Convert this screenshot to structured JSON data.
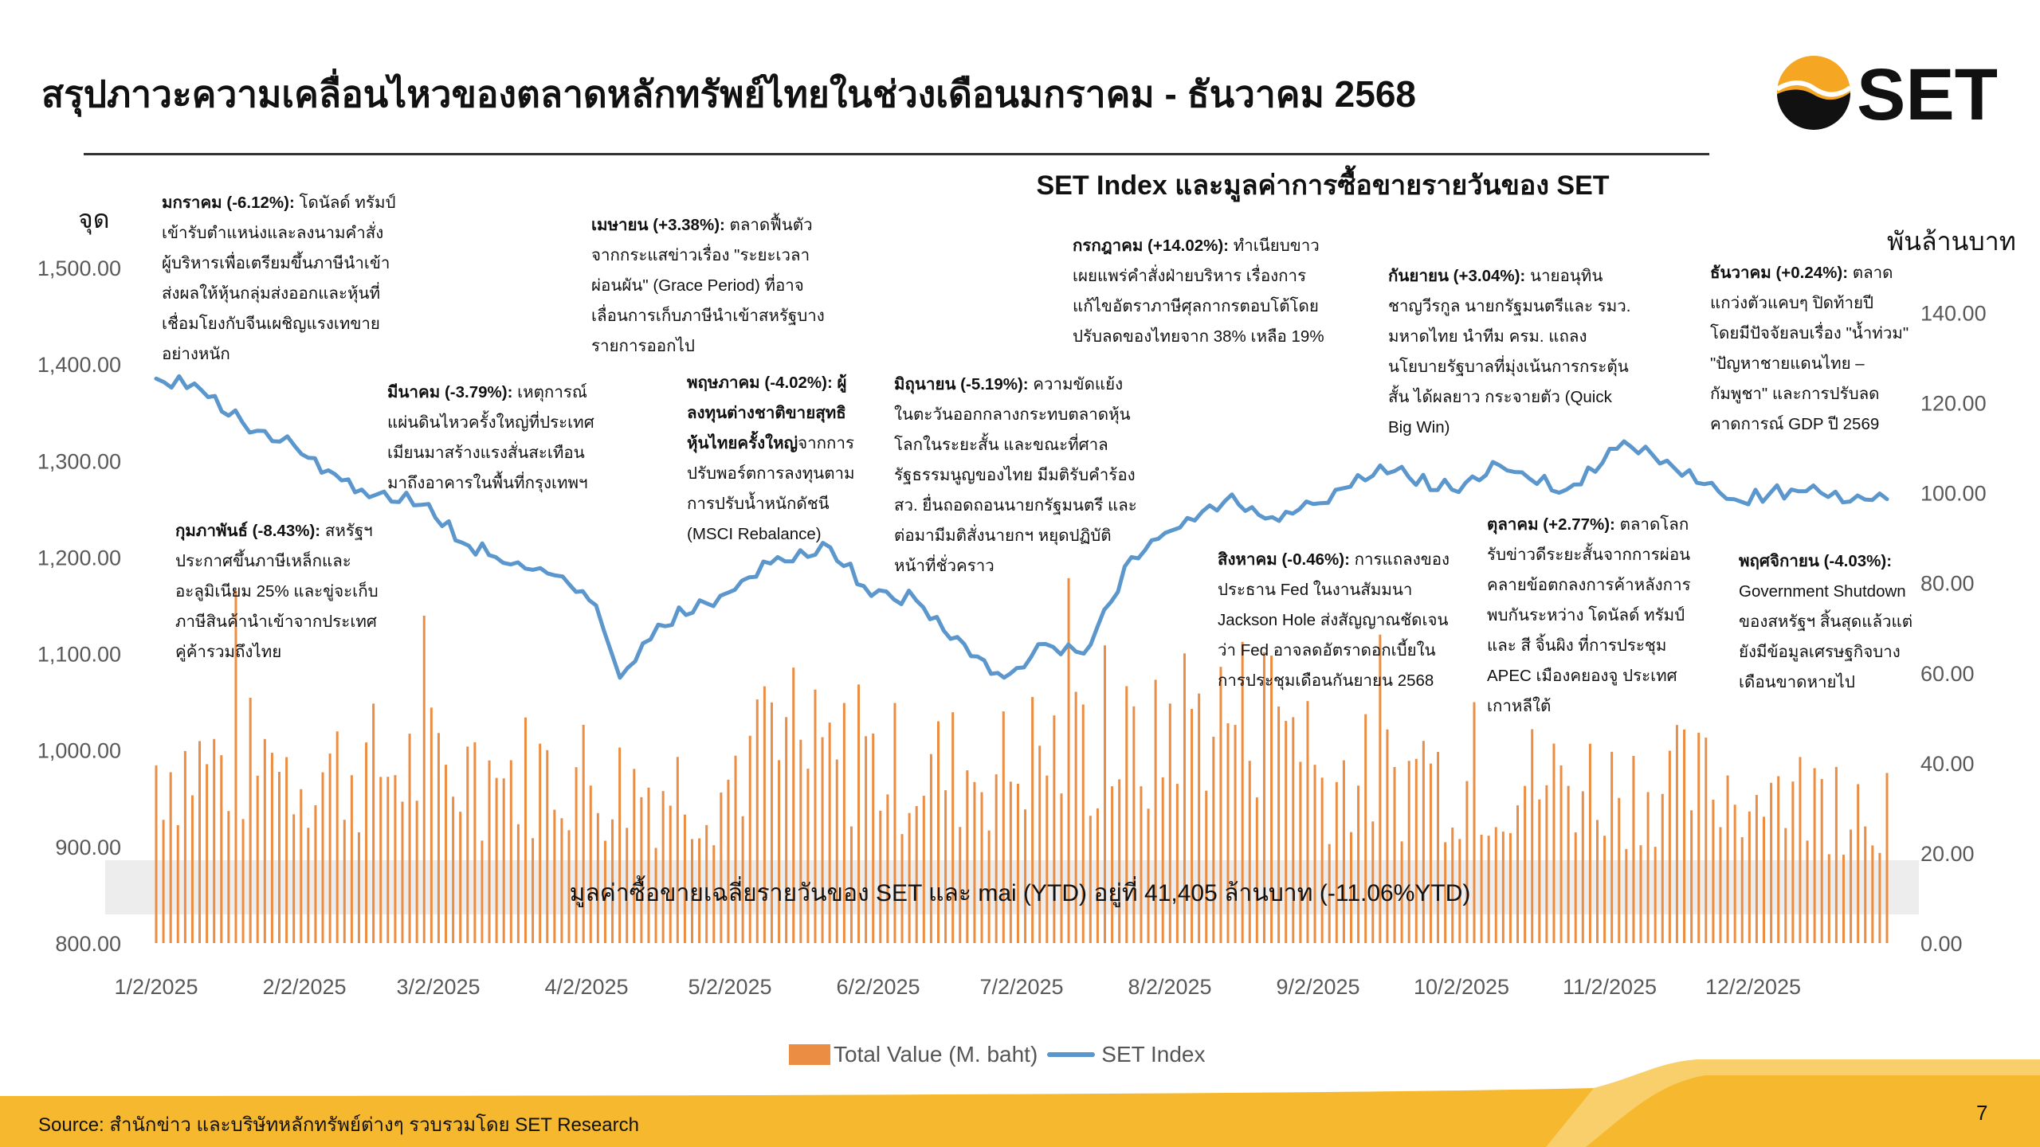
{
  "page": {
    "title": "สรุปภาวะความเคลื่อนไหวของตลาดหลักทรัพย์ไทยในช่วงเดือนมกราคม - ธันวาคม 2568",
    "logo_text": "SET",
    "source": "Source: สำนักข่าว และบริษัทหลักทรัพย์ต่างๆ รวบรวมโดย SET Research",
    "page_number": "7",
    "colors": {
      "bar": "#EB8E44",
      "line": "#5B97CC",
      "accent": "#F5B82E",
      "accent_light": "#F8CF6A",
      "banner": "#EDEDED",
      "logo_dark": "#111111"
    }
  },
  "chart_data": {
    "type": "bar+line",
    "title": "SET Index และมูลค่าการซื้อขายรายวันของ SET",
    "ylabel_left": "จุด",
    "ylabel_right": "พันล้านบาท",
    "ylim_left": [
      800,
      1500
    ],
    "ylim_right": [
      0,
      150
    ],
    "yticks_left": [
      "800.00",
      "900.00",
      "1,000.00",
      "1,100.00",
      "1,200.00",
      "1,300.00",
      "1,400.00",
      "1,500.00"
    ],
    "yticks_right": [
      "0.00",
      "20.00",
      "40.00",
      "60.00",
      "80.00",
      "100.00",
      "120.00",
      "140.00"
    ],
    "x_tick_labels": [
      "1/2/2025",
      "2/2/2025",
      "3/2/2025",
      "4/2/2025",
      "5/2/2025",
      "6/2/2025",
      "7/2/2025",
      "8/2/2025",
      "9/2/2025",
      "10/2/2025",
      "11/2/2025",
      "12/2/2025"
    ],
    "legend": {
      "bar": "Total Value (M. baht)",
      "line": "SET Index"
    },
    "banner": "มูลค่าซื้อขายเฉลี่ยรายวันของ SET และ mai (YTD) อยู่ที่ 41,405 ล้านบาท (-11.06%YTD)",
    "series_index_monthly_anchors": [
      {
        "date": "2025-01-02",
        "value": 1385
      },
      {
        "date": "2025-01-10",
        "value": 1380
      },
      {
        "date": "2025-01-20",
        "value": 1340
      },
      {
        "date": "2025-01-31",
        "value": 1315
      },
      {
        "date": "2025-02-07",
        "value": 1290
      },
      {
        "date": "2025-02-14",
        "value": 1270
      },
      {
        "date": "2025-02-28",
        "value": 1255
      },
      {
        "date": "2025-03-07",
        "value": 1215
      },
      {
        "date": "2025-03-14",
        "value": 1200
      },
      {
        "date": "2025-03-28",
        "value": 1180
      },
      {
        "date": "2025-04-04",
        "value": 1150
      },
      {
        "date": "2025-04-09",
        "value": 1075
      },
      {
        "date": "2025-04-17",
        "value": 1130
      },
      {
        "date": "2025-04-30",
        "value": 1160
      },
      {
        "date": "2025-05-12",
        "value": 1200
      },
      {
        "date": "2025-05-23",
        "value": 1210
      },
      {
        "date": "2025-05-30",
        "value": 1170
      },
      {
        "date": "2025-06-10",
        "value": 1155
      },
      {
        "date": "2025-06-20",
        "value": 1110
      },
      {
        "date": "2025-06-27",
        "value": 1080
      },
      {
        "date": "2025-07-01",
        "value": 1085
      },
      {
        "date": "2025-07-07",
        "value": 1110
      },
      {
        "date": "2025-07-15",
        "value": 1100
      },
      {
        "date": "2025-07-25",
        "value": 1200
      },
      {
        "date": "2025-08-01",
        "value": 1225
      },
      {
        "date": "2025-08-15",
        "value": 1265
      },
      {
        "date": "2025-08-22",
        "value": 1240
      },
      {
        "date": "2025-09-01",
        "value": 1255
      },
      {
        "date": "2025-09-15",
        "value": 1295
      },
      {
        "date": "2025-09-30",
        "value": 1270
      },
      {
        "date": "2025-10-10",
        "value": 1295
      },
      {
        "date": "2025-10-24",
        "value": 1270
      },
      {
        "date": "2025-11-05",
        "value": 1320
      },
      {
        "date": "2025-11-14",
        "value": 1300
      },
      {
        "date": "2025-11-28",
        "value": 1260
      },
      {
        "date": "2025-12-10",
        "value": 1270
      },
      {
        "date": "2025-12-30",
        "value": 1260
      }
    ],
    "total_value_bn_baht_monthly_avg": [
      {
        "month": "Jan",
        "value": 43
      },
      {
        "month": "Feb",
        "value": 42
      },
      {
        "month": "Mar",
        "value": 41
      },
      {
        "month": "Apr",
        "value": 38
      },
      {
        "month": "May",
        "value": 44
      },
      {
        "month": "Jun",
        "value": 42
      },
      {
        "month": "Jul",
        "value": 46
      },
      {
        "month": "Aug",
        "value": 55
      },
      {
        "month": "Sep",
        "value": 40
      },
      {
        "month": "Oct",
        "value": 39
      },
      {
        "month": "Nov",
        "value": 38
      },
      {
        "month": "Dec",
        "value": 35
      }
    ]
  },
  "annotations": [
    {
      "head": "มกราคม (-6.12%):",
      "lines": [
        " โดนัลด์ ทรัมป์",
        "เข้ารับตำแหน่งและลงนามคำสั่ง",
        "ผู้บริหารเพื่อเตรียมขึ้นภาษีนำเข้า",
        "ส่งผลให้หุ้นกลุ่มส่งออกและหุ้นที่",
        "เชื่อมโยงกับจีนเผชิญแรงเทขาย",
        "อย่างหนัก"
      ]
    },
    {
      "head": "กุมภาพันธ์ (-8.43%):",
      "lines": [
        " สหรัฐฯ",
        "ประกาศขึ้นภาษีเหล็กและ",
        "อะลูมิเนียม 25% และขู่จะเก็บ",
        "ภาษีสินค้านำเข้าจากประเทศ",
        "คู่ค้ารวมถึงไทย"
      ]
    },
    {
      "head": "มีนาคม (-3.79%):",
      "lines": [
        " เหตุการณ์",
        "แผ่นดินไหวครั้งใหญ่ที่ประเทศ",
        "เมียนมาสร้างแรงสั่นสะเทือน",
        "มาถึงอาคารในพื้นที่กรุงเทพฯ"
      ]
    },
    {
      "head": "เมษายน (+3.38%):",
      "lines": [
        " ตลาดฟื้นตัว",
        "จากกระแสข่าวเรื่อง \"ระยะเวลา",
        "ผ่อนผัน\" (Grace Period) ที่อาจ",
        "เลื่อนการเก็บภาษีนำเข้าสหรัฐบาง",
        "รายการออกไป"
      ]
    },
    {
      "head": "พฤษภาคม (-4.02%): ผู้",
      "bold_lines": [
        "ลงทุนต่างชาติขายสุทธิ"
      ],
      "mixed": {
        "bold": "หุ้นไทยครั้งใหญ่",
        "normal": "จากการ"
      },
      "lines": [
        "ปรับพอร์ตการลงทุนตาม",
        "การปรับน้ำหนักดัชนี",
        "(MSCI Rebalance)"
      ]
    },
    {
      "head": "มิถุนายน (-5.19%):",
      "lines": [
        " ความขัดแย้ง",
        "ในตะวันออกกลางกระทบตลาดหุ้น",
        "โลกในระยะสั้น และขณะที่ศาล",
        "รัฐธรรมนูญของไทย มีมติรับคำร้อง",
        "สว. ยื่นถอดถอนนายกรัฐมนตรี และ",
        "ต่อมามีมติสั่งนายกฯ หยุดปฏิบัติ",
        "หน้าที่ชั่วคราว"
      ]
    },
    {
      "head": "กรกฎาคม (+14.02%):",
      "lines": [
        " ทำเนียบขาว",
        "เผยแพร่คำสั่งฝ่ายบริหาร เรื่องการ",
        "แก้ไขอัตราภาษีศุลกากรตอบโต้โดย",
        "ปรับลดของไทยจาก 38% เหลือ 19%"
      ]
    },
    {
      "head": "สิงหาคม (-0.46%):",
      "lines": [
        " การแถลงของ",
        "ประธาน Fed ในงานสัมมนา",
        "Jackson Hole ส่งสัญญาณชัดเจน",
        "ว่า Fed อาจลดอัตราดอกเบี้ยใน",
        "การประชุมเดือนกันยายน 2568"
      ]
    },
    {
      "head": "กันยายน (+3.04%):",
      "lines": [
        " นายอนุทิน",
        "ชาญวีรกูล นายกรัฐมนตรีและ รมว.",
        "มหาดไทย นำทีม ครม. แถลง",
        "นโยบายรัฐบาลที่มุ่งเน้นการกระตุ้น",
        "สั้น ได้ผลยาว กระจายตัว (Quick",
        "Big Win)"
      ]
    },
    {
      "head": "ตุลาคม (+2.77%):",
      "lines": [
        " ตลาดโลก",
        "รับข่าวดีระยะสั้นจากการผ่อน",
        "คลายข้อตกลงการค้าหลังการ",
        "พบกันระหว่าง โดนัลด์ ทรัมป์",
        "และ สี จิ้นผิง ที่การประชุม",
        "APEC เมืองคยองจู ประเทศ",
        "เกาหลีใต้"
      ]
    },
    {
      "head": "พฤศจิกายน (-4.03%):",
      "lines": [
        "Government Shutdown",
        "ของสหรัฐฯ สิ้นสุดแล้วแต่",
        "ยังมีข้อมูลเศรษฐกิจบาง",
        "เดือนขาดหายไป"
      ]
    },
    {
      "head": "ธันวาคม (+0.24%):",
      "lines": [
        " ตลาด",
        "แกว่งตัวแคบๆ ปิดท้ายปี",
        "โดยมีปัจจัยลบเรื่อง \"น้ำท่วม\"",
        "\"ปัญหาชายแดนไทย –",
        "กัมพูชา\" และการปรับลด",
        "คาดการณ์ GDP ปี 2569"
      ]
    }
  ]
}
